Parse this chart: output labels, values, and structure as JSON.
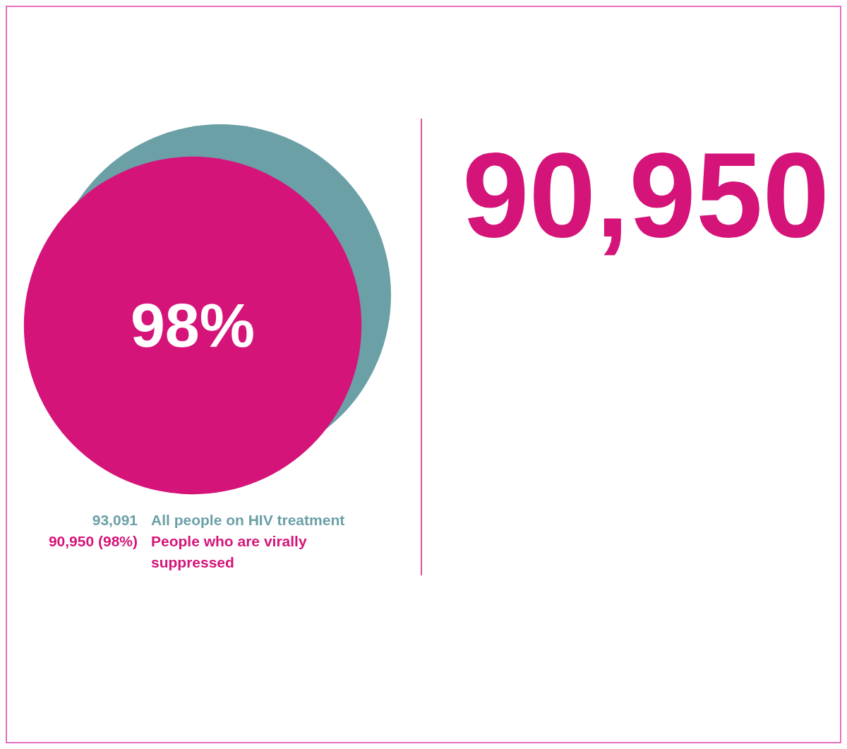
{
  "chart_data": {
    "type": "other",
    "categories": [
      "All people on HIV treatment",
      "People who are virally suppressed"
    ],
    "values": [
      93091,
      90950
    ],
    "colors": [
      "#6ba0a7",
      "#d51479"
    ],
    "value_labels": [
      "93,091",
      "90,950 (98%)"
    ],
    "annotations": [
      "98%",
      "90,950"
    ]
  }
}
